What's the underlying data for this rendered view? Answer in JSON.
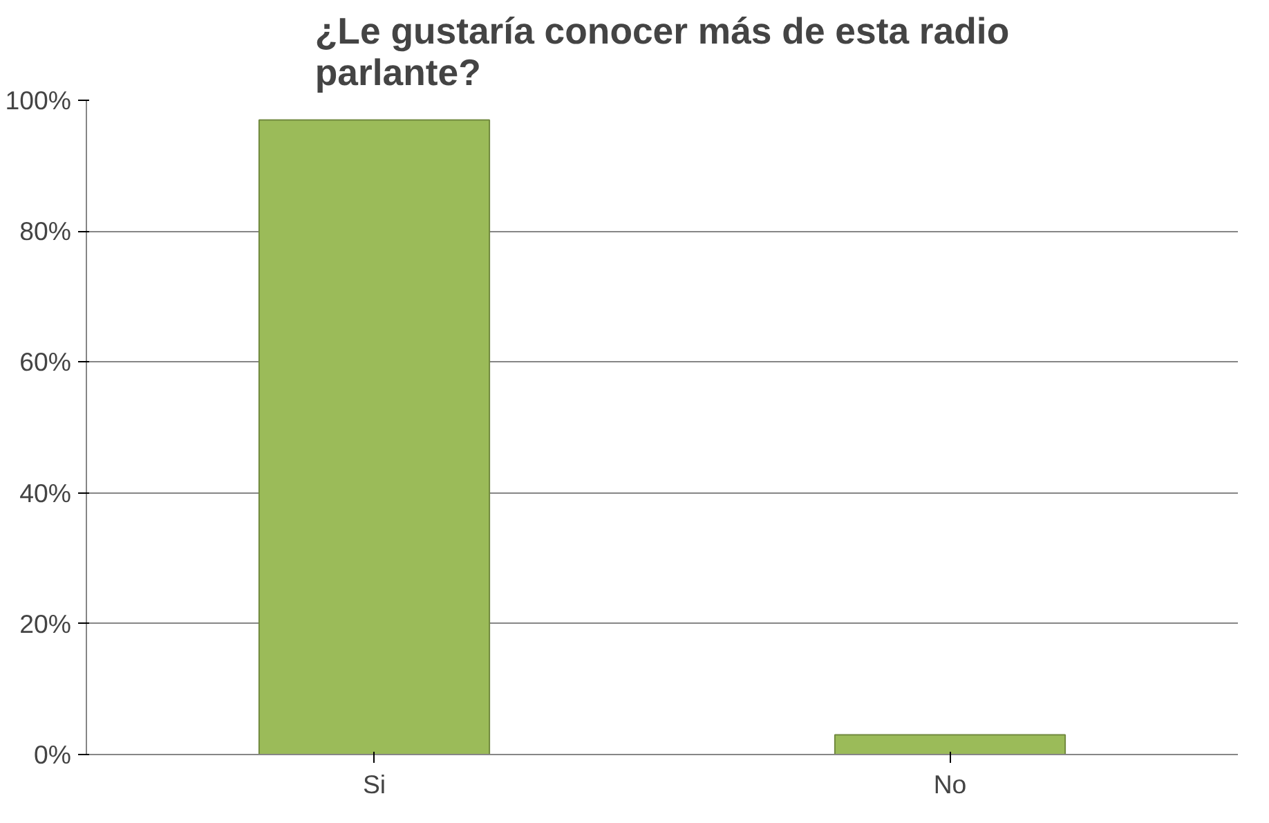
{
  "chart_data": {
    "type": "bar",
    "title": "¿Le gustaría conocer más de esta radio parlante?",
    "categories": [
      "Si",
      "No"
    ],
    "values": [
      97,
      3
    ],
    "color": "#9bbb59",
    "ylim": [
      0,
      100
    ],
    "yticks": [
      {
        "value": 0,
        "label": "0%"
      },
      {
        "value": 20,
        "label": "20%"
      },
      {
        "value": 40,
        "label": "40%"
      },
      {
        "value": 60,
        "label": "60%"
      },
      {
        "value": 80,
        "label": "80%"
      },
      {
        "value": 100,
        "label": "100%"
      }
    ],
    "grid": "y"
  }
}
